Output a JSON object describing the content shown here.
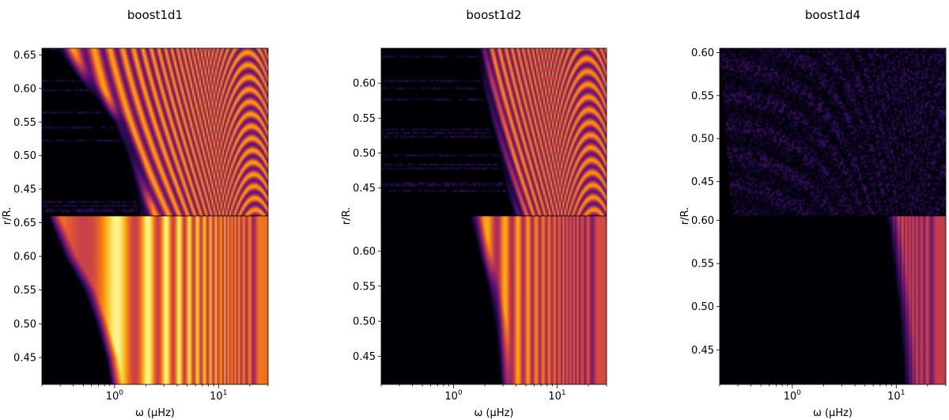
{
  "figure": {
    "background": "#ffffff",
    "colormap": "inferno"
  },
  "chart_data": [
    {
      "type": "heatmap",
      "title": "boost1d1",
      "xlabel": "ω (μHz)",
      "ylabel": "r/R.",
      "xscale": "log",
      "xlim": [
        0.2,
        30
      ],
      "x_ticks": [
        {
          "value": 1,
          "label": "10^0"
        },
        {
          "value": 10,
          "label": "10^1"
        }
      ],
      "subplots": [
        {
          "position": "top",
          "ylim": [
            0.41,
            0.66
          ],
          "y_ticks": [
            0.45,
            0.5,
            0.55,
            0.6,
            0.65
          ],
          "pattern": "wave-interference",
          "onset_freq": [
            [
              0.41,
              1.9
            ],
            [
              0.45,
              1.8
            ],
            [
              0.5,
              1.5
            ],
            [
              0.55,
              1.1
            ],
            [
              0.6,
              0.6
            ],
            [
              0.66,
              0.3
            ]
          ],
          "peak_intensity": 0.8,
          "noise_level": 0.55
        },
        {
          "position": "bottom",
          "ylim": [
            0.41,
            0.66
          ],
          "y_ticks": [
            0.45,
            0.5,
            0.55,
            0.6,
            0.65
          ],
          "pattern": "vertical-bands",
          "onset_freq": [
            [
              0.41,
              1.0
            ],
            [
              0.45,
              0.9
            ],
            [
              0.5,
              0.72
            ],
            [
              0.55,
              0.55
            ],
            [
              0.6,
              0.36
            ],
            [
              0.66,
              0.25
            ]
          ],
          "peak_intensity": 0.98,
          "noise_level": 0.0
        }
      ]
    },
    {
      "type": "heatmap",
      "title": "boost1d2",
      "xlabel": "ω (μHz)",
      "ylabel": "r/R.",
      "xscale": "log",
      "xlim": [
        0.2,
        30
      ],
      "x_ticks": [
        {
          "value": 1,
          "label": "10^0"
        },
        {
          "value": 10,
          "label": "10^1"
        }
      ],
      "subplots": [
        {
          "position": "top",
          "ylim": [
            0.41,
            0.65
          ],
          "y_ticks": [
            0.45,
            0.5,
            0.55,
            0.6
          ],
          "pattern": "wave-interference",
          "onset_freq": [
            [
              0.41,
              4.2
            ],
            [
              0.45,
              3.6
            ],
            [
              0.5,
              3.0
            ],
            [
              0.55,
              2.5
            ],
            [
              0.6,
              2.1
            ],
            [
              0.65,
              1.9
            ]
          ],
          "peak_intensity": 0.78,
          "noise_level": 0.4
        },
        {
          "position": "bottom",
          "ylim": [
            0.41,
            0.65
          ],
          "y_ticks": [
            0.45,
            0.5,
            0.55,
            0.6
          ],
          "pattern": "vertical-bands",
          "onset_freq": [
            [
              0.41,
              3.1
            ],
            [
              0.45,
              2.95
            ],
            [
              0.5,
              2.7
            ],
            [
              0.55,
              2.35
            ],
            [
              0.6,
              1.9
            ],
            [
              0.65,
              1.55
            ]
          ],
          "peak_intensity": 0.82,
          "noise_level": 0.0
        }
      ]
    },
    {
      "type": "heatmap",
      "title": "boost1d4",
      "xlabel": "ω (μHz)",
      "ylabel": "r/R.",
      "xscale": "log",
      "xlim": [
        0.2,
        30
      ],
      "x_ticks": [
        {
          "value": 1,
          "label": "10^0"
        },
        {
          "value": 10,
          "label": "10^1"
        }
      ],
      "subplots": [
        {
          "position": "top",
          "ylim": [
            0.41,
            0.605
          ],
          "y_ticks": [
            0.45,
            0.5,
            0.55,
            0.6
          ],
          "pattern": "speckle",
          "onset_freq": [
            [
              0.41,
              0.3
            ],
            [
              0.605,
              0.22
            ]
          ],
          "peak_intensity": 0.55,
          "noise_level": 0.7
        },
        {
          "position": "bottom",
          "ylim": [
            0.41,
            0.605
          ],
          "y_ticks": [
            0.45,
            0.5,
            0.55,
            0.6
          ],
          "pattern": "vertical-bands",
          "onset_freq": [
            [
              0.41,
              13
            ],
            [
              0.45,
              12.5
            ],
            [
              0.5,
              11.5
            ],
            [
              0.55,
              10.2
            ],
            [
              0.6,
              9.0
            ],
            [
              0.605,
              8.8
            ]
          ],
          "peak_intensity": 0.75,
          "noise_level": 0.0
        }
      ]
    }
  ]
}
